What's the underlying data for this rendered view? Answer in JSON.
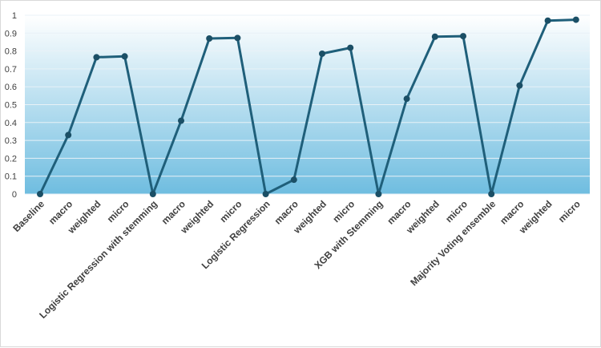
{
  "chart_data": {
    "type": "line",
    "title": "",
    "xlabel": "",
    "ylabel": "",
    "ylim": [
      0,
      1
    ],
    "yticks": [
      "0",
      "0.1",
      "0.2",
      "0.3",
      "0.4",
      "0.5",
      "0.6",
      "0.7",
      "0.8",
      "0.9",
      "1"
    ],
    "grid": true,
    "legend": "none",
    "categories": [
      "Baseline",
      "macro",
      "weighted",
      "micro",
      "Logistic Regression with stemming",
      "macro",
      "weighted",
      "micro",
      "Logistic Regression",
      "macro",
      "weighted",
      "micro",
      "XGB with Stemming",
      "macro",
      "weighted",
      "micro",
      "Majority Voting ensemble",
      "macro",
      "weighted",
      "micro"
    ],
    "series": [
      {
        "values": [
          0,
          0.33,
          0.765,
          0.77,
          0,
          0.41,
          0.87,
          0.873,
          0,
          0.08,
          0.785,
          0.818,
          0,
          0.533,
          0.88,
          0.883,
          0,
          0.607,
          0.97,
          0.975
        ]
      }
    ],
    "colors": {
      "line": "#1f5f7a",
      "marker": "#1b4f66",
      "gradient_top": "#ffffff",
      "gradient_bottom": "#6fbde0",
      "gridline": "#e8f1f7"
    }
  }
}
